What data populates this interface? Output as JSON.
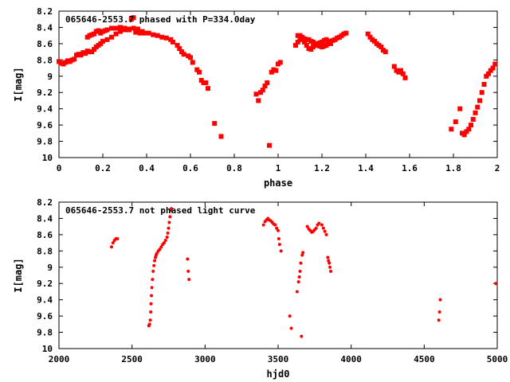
{
  "chart_data": [
    {
      "type": "scatter",
      "title": "065646-2553.7 phased with P=334.0day",
      "xlabel": "phase",
      "ylabel": "I[mag]",
      "xlim": [
        0,
        2
      ],
      "ylim": [
        8.2,
        10
      ],
      "y_inverted": true,
      "grid": false,
      "legend": "none",
      "marker_color": "#ff0000",
      "x_ticks": [
        {
          "value": 0,
          "label": "0"
        },
        {
          "value": 0.2,
          "label": "0.2"
        },
        {
          "value": 0.4,
          "label": "0.4"
        },
        {
          "value": 0.6,
          "label": "0.6"
        },
        {
          "value": 0.8,
          "label": "0.8"
        },
        {
          "value": 1,
          "label": "1"
        },
        {
          "value": 1.2,
          "label": "1.2"
        },
        {
          "value": 1.4,
          "label": "1.4"
        },
        {
          "value": 1.6,
          "label": "1.6"
        },
        {
          "value": 1.8,
          "label": "1.8"
        },
        {
          "value": 2,
          "label": "2"
        }
      ],
      "y_ticks": [
        {
          "value": 8.2,
          "label": "8.2"
        },
        {
          "value": 8.4,
          "label": "8.4"
        },
        {
          "value": 8.6,
          "label": "8.6"
        },
        {
          "value": 8.8,
          "label": "8.8"
        },
        {
          "value": 9,
          "label": "9"
        },
        {
          "value": 9.2,
          "label": "9.2"
        },
        {
          "value": 9.4,
          "label": "9.4"
        },
        {
          "value": 9.6,
          "label": "9.6"
        },
        {
          "value": 9.8,
          "label": "9.8"
        },
        {
          "value": 10,
          "label": "10"
        }
      ],
      "points": [
        [
          0.0,
          8.82
        ],
        [
          0.01,
          8.84
        ],
        [
          0.02,
          8.85
        ],
        [
          0.03,
          8.83
        ],
        [
          0.04,
          8.81
        ],
        [
          0.05,
          8.82
        ],
        [
          0.06,
          8.8
        ],
        [
          0.07,
          8.79
        ],
        [
          0.08,
          8.74
        ],
        [
          0.09,
          8.73
        ],
        [
          0.1,
          8.74
        ],
        [
          0.11,
          8.71
        ],
        [
          0.12,
          8.72
        ],
        [
          0.13,
          8.69
        ],
        [
          0.14,
          8.7
        ],
        [
          0.15,
          8.7
        ],
        [
          0.16,
          8.67
        ],
        [
          0.17,
          8.64
        ],
        [
          0.18,
          8.62
        ],
        [
          0.19,
          8.6
        ],
        [
          0.2,
          8.57
        ],
        [
          0.22,
          8.55
        ],
        [
          0.24,
          8.52
        ],
        [
          0.26,
          8.48
        ],
        [
          0.28,
          8.45
        ],
        [
          0.3,
          8.43
        ],
        [
          0.32,
          8.42
        ],
        [
          0.34,
          8.41
        ],
        [
          0.36,
          8.42
        ],
        [
          0.38,
          8.45
        ],
        [
          0.13,
          8.52
        ],
        [
          0.14,
          8.5
        ],
        [
          0.15,
          8.49
        ],
        [
          0.16,
          8.48
        ],
        [
          0.17,
          8.45
        ],
        [
          0.18,
          8.44
        ],
        [
          0.19,
          8.47
        ],
        [
          0.2,
          8.45
        ],
        [
          0.21,
          8.44
        ],
        [
          0.22,
          8.43
        ],
        [
          0.24,
          8.41
        ],
        [
          0.26,
          8.41
        ],
        [
          0.28,
          8.4
        ],
        [
          0.3,
          8.41
        ],
        [
          0.32,
          8.43
        ],
        [
          0.33,
          8.3
        ],
        [
          0.34,
          8.28
        ],
        [
          0.35,
          8.46
        ],
        [
          0.37,
          8.47
        ],
        [
          0.39,
          8.47
        ],
        [
          0.41,
          8.47
        ],
        [
          0.43,
          8.49
        ],
        [
          0.45,
          8.5
        ],
        [
          0.47,
          8.52
        ],
        [
          0.49,
          8.53
        ],
        [
          0.51,
          8.55
        ],
        [
          0.52,
          8.58
        ],
        [
          0.54,
          8.62
        ],
        [
          0.55,
          8.66
        ],
        [
          0.56,
          8.7
        ],
        [
          0.57,
          8.73
        ],
        [
          0.59,
          8.75
        ],
        [
          0.6,
          8.77
        ],
        [
          0.61,
          8.83
        ],
        [
          0.63,
          8.92
        ],
        [
          0.64,
          8.95
        ],
        [
          0.65,
          9.05
        ],
        [
          0.66,
          9.08
        ],
        [
          0.67,
          9.08
        ],
        [
          0.68,
          9.15
        ],
        [
          0.71,
          9.58
        ],
        [
          0.74,
          9.74
        ],
        [
          0.9,
          9.22
        ],
        [
          0.91,
          9.3
        ],
        [
          0.92,
          9.2
        ],
        [
          0.93,
          9.17
        ],
        [
          0.94,
          9.12
        ],
        [
          0.95,
          9.08
        ],
        [
          0.96,
          9.85
        ],
        [
          0.97,
          8.95
        ],
        [
          0.98,
          8.92
        ],
        [
          0.99,
          8.93
        ],
        [
          1.0,
          8.85
        ],
        [
          1.01,
          8.83
        ],
        [
          1.08,
          8.62
        ],
        [
          1.09,
          8.58
        ],
        [
          1.1,
          8.55
        ],
        [
          1.11,
          8.53
        ],
        [
          1.12,
          8.54
        ],
        [
          1.13,
          8.55
        ],
        [
          1.14,
          8.55
        ],
        [
          1.15,
          8.57
        ],
        [
          1.16,
          8.58
        ],
        [
          1.17,
          8.6
        ],
        [
          1.18,
          8.62
        ],
        [
          1.19,
          8.63
        ],
        [
          1.2,
          8.64
        ],
        [
          1.21,
          8.63
        ],
        [
          1.22,
          8.62
        ],
        [
          1.23,
          8.6
        ],
        [
          1.24,
          8.57
        ],
        [
          1.25,
          8.56
        ],
        [
          1.26,
          8.55
        ],
        [
          1.27,
          8.53
        ],
        [
          1.28,
          8.52
        ],
        [
          1.29,
          8.5
        ],
        [
          1.3,
          8.48
        ],
        [
          1.31,
          8.47
        ],
        [
          1.09,
          8.5
        ],
        [
          1.1,
          8.5
        ],
        [
          1.11,
          8.52
        ],
        [
          1.12,
          8.58
        ],
        [
          1.13,
          8.62
        ],
        [
          1.14,
          8.66
        ],
        [
          1.15,
          8.67
        ],
        [
          1.16,
          8.64
        ],
        [
          1.17,
          8.62
        ],
        [
          1.18,
          8.6
        ],
        [
          1.19,
          8.59
        ],
        [
          1.2,
          8.58
        ],
        [
          1.21,
          8.56
        ],
        [
          1.22,
          8.55
        ],
        [
          1.23,
          8.57
        ],
        [
          1.24,
          8.6
        ],
        [
          1.41,
          8.48
        ],
        [
          1.42,
          8.52
        ],
        [
          1.43,
          8.55
        ],
        [
          1.44,
          8.57
        ],
        [
          1.45,
          8.6
        ],
        [
          1.46,
          8.62
        ],
        [
          1.47,
          8.64
        ],
        [
          1.48,
          8.68
        ],
        [
          1.49,
          8.7
        ],
        [
          1.53,
          8.88
        ],
        [
          1.54,
          8.93
        ],
        [
          1.55,
          8.95
        ],
        [
          1.56,
          8.93
        ],
        [
          1.57,
          8.97
        ],
        [
          1.58,
          9.02
        ],
        [
          1.79,
          9.65
        ],
        [
          1.81,
          9.56
        ],
        [
          1.83,
          9.4
        ],
        [
          1.84,
          9.7
        ],
        [
          1.85,
          9.72
        ],
        [
          1.86,
          9.68
        ],
        [
          1.87,
          9.65
        ],
        [
          1.88,
          9.6
        ],
        [
          1.89,
          9.53
        ],
        [
          1.9,
          9.45
        ],
        [
          1.91,
          9.38
        ],
        [
          1.92,
          9.3
        ],
        [
          1.93,
          9.2
        ],
        [
          1.94,
          9.1
        ],
        [
          1.95,
          9.0
        ],
        [
          1.96,
          8.97
        ],
        [
          1.97,
          8.93
        ],
        [
          1.98,
          8.9
        ],
        [
          1.99,
          8.85
        ]
      ]
    },
    {
      "type": "scatter",
      "title": "065646-2553.7 not phased light curve",
      "xlabel": "hjd0",
      "ylabel": "I[mag]",
      "xlim": [
        2000,
        5000
      ],
      "ylim": [
        8.2,
        10
      ],
      "y_inverted": true,
      "grid": false,
      "legend": "none",
      "marker_color": "#ff0000",
      "x_ticks": [
        {
          "value": 2000,
          "label": "2000"
        },
        {
          "value": 2500,
          "label": "2500"
        },
        {
          "value": 3000,
          "label": "3000"
        },
        {
          "value": 3500,
          "label": "3500"
        },
        {
          "value": 4000,
          "label": "4000"
        },
        {
          "value": 4500,
          "label": "4500"
        },
        {
          "value": 5000,
          "label": "5000"
        }
      ],
      "y_ticks": [
        {
          "value": 8.2,
          "label": "8.2"
        },
        {
          "value": 8.4,
          "label": "8.4"
        },
        {
          "value": 8.6,
          "label": "8.6"
        },
        {
          "value": 8.8,
          "label": "8.8"
        },
        {
          "value": 9,
          "label": "9"
        },
        {
          "value": 9.2,
          "label": "9.2"
        },
        {
          "value": 9.4,
          "label": "9.4"
        },
        {
          "value": 9.6,
          "label": "9.6"
        },
        {
          "value": 9.8,
          "label": "9.8"
        },
        {
          "value": 10,
          "label": "10"
        }
      ],
      "points": [
        [
          2360,
          8.75
        ],
        [
          2370,
          8.7
        ],
        [
          2380,
          8.67
        ],
        [
          2390,
          8.65
        ],
        [
          2400,
          8.65
        ],
        [
          2615,
          9.72
        ],
        [
          2620,
          9.7
        ],
        [
          2625,
          9.65
        ],
        [
          2628,
          9.55
        ],
        [
          2630,
          9.45
        ],
        [
          2633,
          9.35
        ],
        [
          2636,
          9.25
        ],
        [
          2640,
          9.15
        ],
        [
          2645,
          9.05
        ],
        [
          2650,
          8.98
        ],
        [
          2655,
          8.92
        ],
        [
          2660,
          8.88
        ],
        [
          2665,
          8.85
        ],
        [
          2670,
          8.83
        ],
        [
          2680,
          8.8
        ],
        [
          2690,
          8.78
        ],
        [
          2700,
          8.75
        ],
        [
          2710,
          8.72
        ],
        [
          2720,
          8.7
        ],
        [
          2730,
          8.67
        ],
        [
          2740,
          8.63
        ],
        [
          2745,
          8.58
        ],
        [
          2750,
          8.52
        ],
        [
          2755,
          8.45
        ],
        [
          2760,
          8.38
        ],
        [
          2765,
          8.3
        ],
        [
          2770,
          8.28
        ],
        [
          2880,
          8.9
        ],
        [
          2885,
          9.05
        ],
        [
          2890,
          9.15
        ],
        [
          3400,
          8.48
        ],
        [
          3410,
          8.44
        ],
        [
          3420,
          8.42
        ],
        [
          3430,
          8.4
        ],
        [
          3440,
          8.42
        ],
        [
          3450,
          8.43
        ],
        [
          3460,
          8.45
        ],
        [
          3470,
          8.47
        ],
        [
          3480,
          8.48
        ],
        [
          3490,
          8.52
        ],
        [
          3500,
          8.55
        ],
        [
          3505,
          8.65
        ],
        [
          3510,
          8.72
        ],
        [
          3520,
          8.8
        ],
        [
          3580,
          9.6
        ],
        [
          3590,
          9.75
        ],
        [
          3630,
          9.3
        ],
        [
          3640,
          9.18
        ],
        [
          3645,
          9.12
        ],
        [
          3650,
          9.05
        ],
        [
          3655,
          8.95
        ],
        [
          3660,
          9.85
        ],
        [
          3665,
          8.85
        ],
        [
          3670,
          8.82
        ],
        [
          3700,
          8.5
        ],
        [
          3710,
          8.53
        ],
        [
          3720,
          8.55
        ],
        [
          3730,
          8.57
        ],
        [
          3740,
          8.56
        ],
        [
          3750,
          8.54
        ],
        [
          3760,
          8.52
        ],
        [
          3770,
          8.48
        ],
        [
          3780,
          8.46
        ],
        [
          3800,
          8.48
        ],
        [
          3810,
          8.52
        ],
        [
          3820,
          8.56
        ],
        [
          3830,
          8.6
        ],
        [
          3840,
          8.88
        ],
        [
          3845,
          8.92
        ],
        [
          3850,
          8.95
        ],
        [
          3855,
          9.0
        ],
        [
          3860,
          9.05
        ],
        [
          4600,
          9.65
        ],
        [
          4605,
          9.55
        ],
        [
          4610,
          9.4
        ],
        [
          4990,
          9.2
        ]
      ]
    }
  ]
}
